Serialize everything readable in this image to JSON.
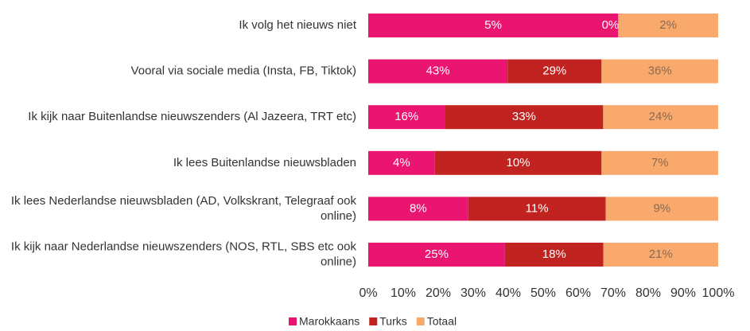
{
  "chart_data": {
    "type": "bar",
    "orientation": "horizontal",
    "stacking": "percent",
    "categories": [
      "Ik volg het nieuws niet",
      "Vooral via sociale media (Insta, FB, Tiktok)",
      "Ik kijk naar Buitenlandse nieuwszenders (Al Jazeera, TRT etc)",
      "Ik lees Buitenlandse nieuwsbladen",
      "Ik lees Nederlandse nieuwsbladen (AD, Volkskrant, Telegraaf ook online)",
      "Ik kijk naar Nederlandse nieuwszenders (NOS, RTL, SBS etc ook online)"
    ],
    "series": [
      {
        "name": "Marokkaans",
        "color": "#ea1570",
        "label_color": "#ffffff",
        "values": [
          5,
          43,
          16,
          4,
          8,
          25
        ],
        "value_labels": [
          "5%",
          "43%",
          "16%",
          "4%",
          "8%",
          "25%"
        ]
      },
      {
        "name": "Turks",
        "color": "#c02320",
        "label_color": "#ffffff",
        "values": [
          0,
          29,
          33,
          10,
          11,
          18
        ],
        "value_labels": [
          "0%",
          "29%",
          "33%",
          "10%",
          "11%",
          "18%"
        ]
      },
      {
        "name": "Totaal",
        "color": "#f9a96c",
        "label_color": "#8a6a52",
        "values": [
          2,
          36,
          24,
          7,
          9,
          21
        ],
        "value_labels": [
          "2%",
          "36%",
          "24%",
          "7%",
          "9%",
          "21%"
        ]
      }
    ],
    "xlim": [
      0,
      100
    ],
    "xticks": [
      {
        "value": 0,
        "label": "0%"
      },
      {
        "value": 10,
        "label": "10%"
      },
      {
        "value": 20,
        "label": "20%"
      },
      {
        "value": 30,
        "label": "30%"
      },
      {
        "value": 40,
        "label": "40%"
      },
      {
        "value": 50,
        "label": "50%"
      },
      {
        "value": 60,
        "label": "60%"
      },
      {
        "value": 70,
        "label": "70%"
      },
      {
        "value": 80,
        "label": "80%"
      },
      {
        "value": 90,
        "label": "90%"
      },
      {
        "value": 100,
        "label": "100%"
      }
    ],
    "grid": false,
    "legend": "bottom"
  }
}
